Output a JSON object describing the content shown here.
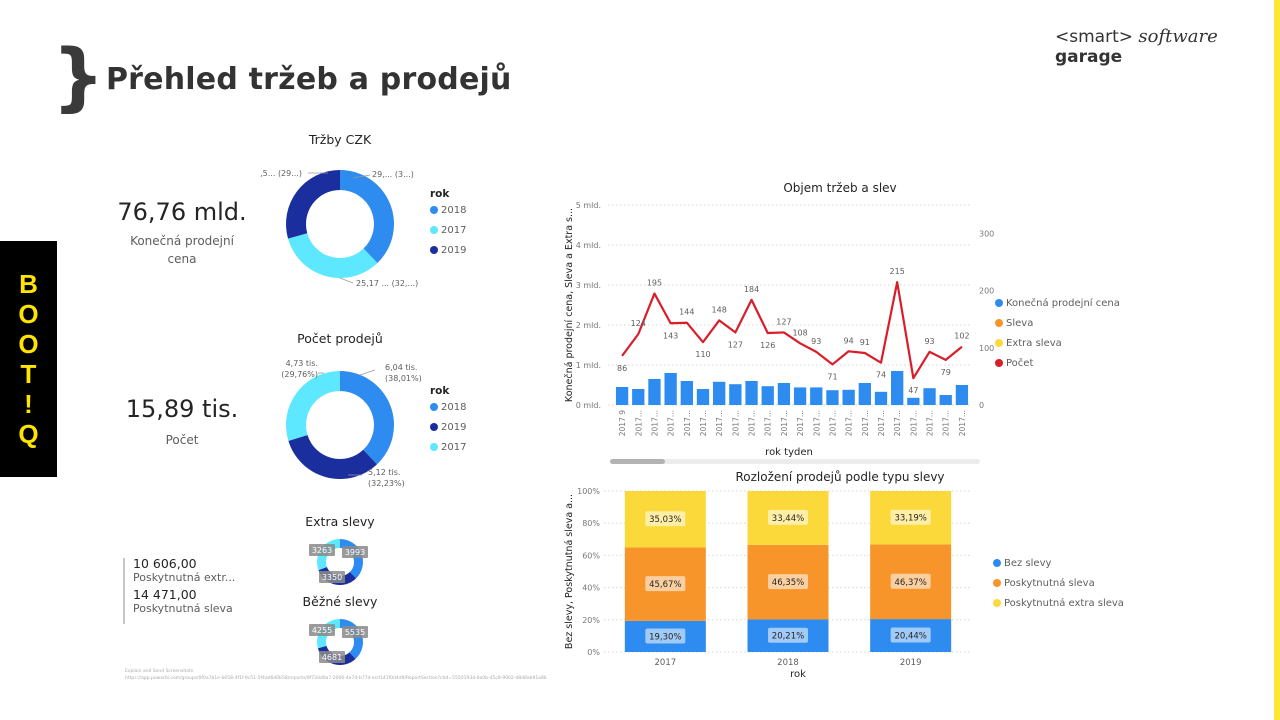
{
  "header": {
    "brace": "}",
    "title": "Přehled tržeb a prodejů",
    "logo": {
      "part1": "<smart>",
      "part2": "software",
      "part3": "garage"
    }
  },
  "side_tab": {
    "letters": [
      "B",
      "O",
      "O",
      "T",
      "!",
      "Q"
    ]
  },
  "colors": {
    "blue": "#2e8bef",
    "light_cyan": "#5ee8ff",
    "dark_blue": "#1a2e9e",
    "orange": "#f7952a",
    "yellow": "#fcd93a",
    "red": "#d81e2a",
    "bootiq_yellow": "#ffe400"
  },
  "kpi_sales": {
    "value": "76,76 mld.",
    "label_line1": "Konečná prodejní",
    "label_line2": "cena"
  },
  "kpi_count": {
    "value": "15,89 tis.",
    "label": "Počet"
  },
  "multi_row_card": {
    "rows": [
      {
        "value": "10 606,00",
        "label": "Poskytnutná extr..."
      },
      {
        "value": "14 471,00",
        "label": "Poskytnutná sleva"
      }
    ]
  },
  "footer": {
    "line1": "Explain and Send Screenshots",
    "line2": "https://app.powerbi.com/groups/0f0a7b1e-b058-4f1f-9c51-5f4ad6d0b58/reports/8f73dd0a7-2006-4e7d-b77d-ecd141f0d4d9/ReportSection?ctid=5550193d-0a0b-45c8-9002-d8d8ab91a8b"
  },
  "chart_data": [
    {
      "id": "trzby-czk",
      "type": "pie",
      "donut": true,
      "title": "Tržby CZK",
      "legend_title": "rok",
      "legend_position": "right",
      "slices": [
        {
          "label": "2018",
          "value": 29.05,
          "data_label": "29,... (3...)",
          "color": "#2e8bef"
        },
        {
          "label": "2017",
          "value": 25.17,
          "data_label": "25,17 ... (32,...)",
          "color": "#5ee8ff"
        },
        {
          "label": "2019",
          "value": 22.54,
          "data_label": "22,5... (29...)",
          "color": "#1a2e9e"
        }
      ],
      "unit": "mld."
    },
    {
      "id": "pocet-prodeju",
      "type": "pie",
      "donut": true,
      "title": "Počet prodejů",
      "legend_title": "rok",
      "legend_position": "right",
      "slices": [
        {
          "label": "2018",
          "value": 6.04,
          "data_label_1": "6,04 tis.",
          "data_label_2": "(38,01%)",
          "color": "#2e8bef"
        },
        {
          "label": "2019",
          "value": 5.12,
          "data_label_1": "5,12 tis.",
          "data_label_2": "(32,23%)",
          "color": "#1a2e9e"
        },
        {
          "label": "2017",
          "value": 4.73,
          "data_label_1": "4,73 tis.",
          "data_label_2": "(29,76%)",
          "color": "#5ee8ff"
        }
      ],
      "unit": "tis."
    },
    {
      "id": "extra-slevy",
      "type": "pie",
      "donut": true,
      "title": "Extra slevy",
      "slices": [
        {
          "label": "2018",
          "value": 3993,
          "data_label": "3993",
          "color": "#2e8bef"
        },
        {
          "label": "2019",
          "value": 3350,
          "data_label": "3350",
          "color": "#1a2e9e"
        },
        {
          "label": "2017",
          "value": 3263,
          "data_label": "3263",
          "color": "#5ee8ff"
        }
      ]
    },
    {
      "id": "bezne-slevy",
      "type": "pie",
      "donut": true,
      "title": "Běžné slevy",
      "slices": [
        {
          "label": "2018",
          "value": 5535,
          "data_label": "5535",
          "color": "#2e8bef"
        },
        {
          "label": "2019",
          "value": 4681,
          "data_label": "4681",
          "color": "#1a2e9e"
        },
        {
          "label": "2017",
          "value": 4255,
          "data_label": "4255",
          "color": "#5ee8ff"
        }
      ]
    },
    {
      "id": "objem-trzeb",
      "type": "bar",
      "combo_line": true,
      "title": "Objem tržeb a slev",
      "xlabel": "rok tyden",
      "ylabel": "Konečná prodejní cena, Sleva a Extra s...",
      "ylim": [
        0,
        5
      ],
      "y_ticks": [
        "0 mld.",
        "1 mld.",
        "2 mld.",
        "3 mld.",
        "4 mld.",
        "5 mld."
      ],
      "y2lim": [
        0,
        350
      ],
      "y2_ticks": [
        "0",
        "100",
        "200",
        "300"
      ],
      "x_ticks": [
        "2017 9",
        "2017...",
        "2017...",
        "2017...",
        "2017...",
        "2017...",
        "2017...",
        "2017...",
        "2017...",
        "2017...",
        "2017...",
        "2017...",
        "2017...",
        "2017...",
        "2017...",
        "2017...",
        "2017...",
        "2017...",
        "2017...",
        "2017...",
        "2017...",
        "2017..."
      ],
      "legend_position": "right",
      "legend": [
        {
          "label": "Konečná prodejní cena",
          "color": "#2e8bef"
        },
        {
          "label": "Sleva",
          "color": "#f7952a"
        },
        {
          "label": "Extra sleva",
          "color": "#fcd93a"
        },
        {
          "label": "Počet",
          "color": "#d81e2a"
        }
      ],
      "series": [
        {
          "name": "Konečná prodejní cena",
          "axis": "left",
          "values": [
            0.45,
            0.4,
            0.65,
            0.8,
            0.6,
            0.4,
            0.58,
            0.52,
            0.6,
            0.47,
            0.55,
            0.44,
            0.44,
            0.37,
            0.38,
            0.55,
            0.33,
            0.85,
            0.18,
            0.42,
            0.25,
            0.5
          ]
        },
        {
          "name": "Počet",
          "axis": "right",
          "values": [
            86,
            124,
            195,
            143,
            144,
            110,
            148,
            127,
            184,
            126,
            127,
            108,
            93,
            71,
            94,
            91,
            74,
            215,
            47,
            93,
            79,
            102
          ]
        }
      ],
      "has_scrollbar": true
    },
    {
      "id": "rozlozeni-prodeju",
      "type": "bar",
      "stacked": "100%",
      "title": "Rozložení prodejů podle typu slevy",
      "xlabel": "rok",
      "ylabel": "Bez slevy, Poskytnutná sleva a...",
      "ylim": [
        0,
        100
      ],
      "y_ticks": [
        "0%",
        "20%",
        "40%",
        "60%",
        "80%",
        "100%"
      ],
      "categories": [
        "2017",
        "2018",
        "2019"
      ],
      "legend_position": "right",
      "series": [
        {
          "name": "Bez slevy",
          "color": "#2e8bef",
          "values": [
            19.3,
            20.21,
            20.44
          ],
          "labels": [
            "19,30%",
            "20,21%",
            "20,44%"
          ]
        },
        {
          "name": "Poskytnutná sleva",
          "color": "#f7952a",
          "values": [
            45.67,
            46.35,
            46.37
          ],
          "labels": [
            "45,67%",
            "46,35%",
            "46,37%"
          ]
        },
        {
          "name": "Poskytnutná extra sleva",
          "color": "#fcd93a",
          "values": [
            35.03,
            33.44,
            33.19
          ],
          "labels": [
            "35,03%",
            "33,44%",
            "33,19%"
          ]
        }
      ]
    }
  ]
}
